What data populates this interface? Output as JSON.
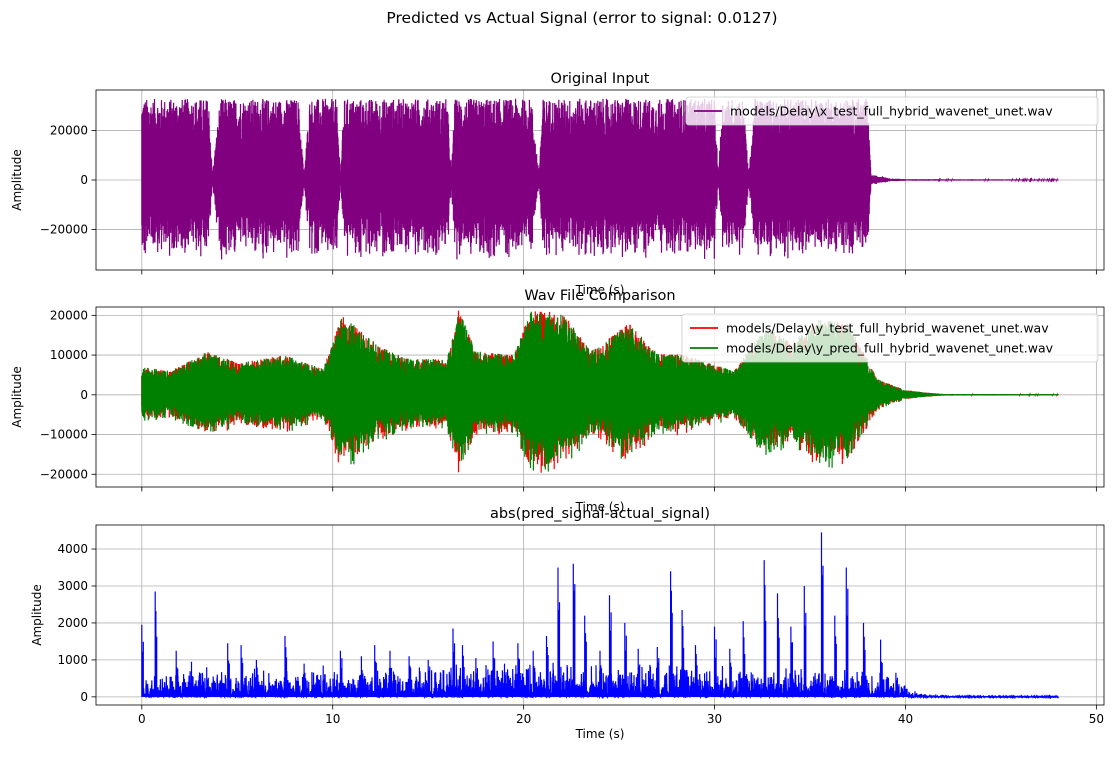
{
  "figure": {
    "suptitle": "Predicted vs Actual Signal (error to signal: 0.0127)"
  },
  "colors": {
    "x_test": "#800080",
    "y_test": "#ff0000",
    "y_pred": "#008000",
    "error": "#0000ff",
    "grid": "#b0b0b0"
  },
  "chart_data": [
    {
      "type": "line",
      "title": "Original Input",
      "xlabel": "Time (s)",
      "ylabel": "Amplitude",
      "xlim": [
        -2.4,
        50.4
      ],
      "ylim": [
        -36300,
        36300
      ],
      "xticks": [
        0,
        10,
        20,
        30,
        40,
        50
      ],
      "yticks": [
        -20000,
        0,
        20000
      ],
      "ytick_labels": [
        "−20000",
        "0",
        "20000"
      ],
      "show_xtick_labels": false,
      "grid": true,
      "legend": "upper right",
      "series": [
        {
          "name": "models/Delay\\x_test_full_hybrid_wavenet_unet.wav",
          "color": "#800080",
          "sample_rate": 5,
          "envelope": [
            [
              0,
              32767
            ],
            [
              3.5,
              32767
            ],
            [
              3.7,
              2000
            ],
            [
              4.1,
              32767
            ],
            [
              8.2,
              32767
            ],
            [
              8.5,
              2500
            ],
            [
              8.8,
              32767
            ],
            [
              10.2,
              32767
            ],
            [
              10.4,
              2500
            ],
            [
              10.6,
              32767
            ],
            [
              16.0,
              32767
            ],
            [
              16.2,
              3000
            ],
            [
              16.4,
              32767
            ],
            [
              20.4,
              32767
            ],
            [
              20.8,
              2500
            ],
            [
              21.0,
              32767
            ],
            [
              30.0,
              32767
            ],
            [
              30.2,
              1500
            ],
            [
              30.4,
              32767
            ],
            [
              31.5,
              32767
            ],
            [
              31.8,
              2000
            ],
            [
              32.1,
              32767
            ],
            [
              38.0,
              32767
            ],
            [
              38.2,
              2000
            ],
            [
              38.8,
              1500
            ],
            [
              39.2,
              600
            ],
            [
              40.2,
              300
            ],
            [
              48.0,
              200
            ]
          ]
        }
      ]
    },
    {
      "type": "line",
      "title": "Wav File Comparison",
      "xlabel": "Time (s)",
      "ylabel": "Amplitude",
      "xlim": [
        -2.4,
        50.4
      ],
      "ylim": [
        -23200,
        22100
      ],
      "xticks": [
        0,
        10,
        20,
        30,
        40,
        50
      ],
      "yticks": [
        -20000,
        -10000,
        0,
        10000,
        20000
      ],
      "ytick_labels": [
        "−20000",
        "−10000",
        "0",
        "10000",
        "20000"
      ],
      "show_xtick_labels": false,
      "grid": true,
      "legend": "upper right",
      "series": [
        {
          "name": "models/Delay\\y_test_full_hybrid_wavenet_unet.wav",
          "color": "#ff0000",
          "sample_rate": 5,
          "envelope": [
            [
              0,
              7000
            ],
            [
              1.5,
              6000
            ],
            [
              3.5,
              11000
            ],
            [
              5.0,
              8000
            ],
            [
              7.5,
              10000
            ],
            [
              9.5,
              6500
            ],
            [
              10.5,
              20000
            ],
            [
              12.5,
              12000
            ],
            [
              14.0,
              9000
            ],
            [
              16.0,
              9000
            ],
            [
              16.6,
              21500
            ],
            [
              17.5,
              11000
            ],
            [
              19.5,
              10000
            ],
            [
              20.3,
              21000
            ],
            [
              21.3,
              21000
            ],
            [
              22.2,
              20000
            ],
            [
              23.5,
              11000
            ],
            [
              25.5,
              18000
            ],
            [
              27.0,
              10500
            ],
            [
              28.5,
              10000
            ],
            [
              31.0,
              6000
            ],
            [
              32.2,
              14000
            ],
            [
              32.8,
              17000
            ],
            [
              34.0,
              13000
            ],
            [
              35.5,
              19000
            ],
            [
              37.0,
              18000
            ],
            [
              38.0,
              9000
            ],
            [
              38.5,
              4000
            ],
            [
              40.0,
              1200
            ],
            [
              41.0,
              600
            ],
            [
              42.0,
              200
            ],
            [
              48.0,
              150
            ]
          ]
        },
        {
          "name": "models/Delay\\y_pred_full_hybrid_wavenet_unet.wav",
          "color": "#008000",
          "sample_rate": 5,
          "envelope": [
            [
              0,
              7000
            ],
            [
              1.5,
              6000
            ],
            [
              3.5,
              11000
            ],
            [
              5.0,
              8000
            ],
            [
              7.5,
              10000
            ],
            [
              9.5,
              6500
            ],
            [
              10.5,
              20000
            ],
            [
              12.5,
              12000
            ],
            [
              14.0,
              9000
            ],
            [
              16.0,
              9000
            ],
            [
              16.6,
              21500
            ],
            [
              17.5,
              11000
            ],
            [
              19.5,
              10000
            ],
            [
              20.3,
              21000
            ],
            [
              21.3,
              21000
            ],
            [
              22.2,
              20000
            ],
            [
              23.5,
              11000
            ],
            [
              25.5,
              18000
            ],
            [
              27.0,
              10500
            ],
            [
              28.5,
              10000
            ],
            [
              31.0,
              6000
            ],
            [
              32.2,
              14000
            ],
            [
              32.8,
              17000
            ],
            [
              34.0,
              13000
            ],
            [
              35.5,
              19000
            ],
            [
              37.0,
              18000
            ],
            [
              38.0,
              9000
            ],
            [
              38.5,
              4000
            ],
            [
              40.0,
              1200
            ],
            [
              41.0,
              600
            ],
            [
              42.0,
              200
            ],
            [
              48.0,
              150
            ]
          ]
        }
      ]
    },
    {
      "type": "line",
      "title": "abs(pred_signal-actual_signal)",
      "xlabel": "Time (s)",
      "ylabel": "Amplitude",
      "xlim": [
        -2.4,
        50.4
      ],
      "ylim": [
        -220,
        4650
      ],
      "xticks": [
        0,
        10,
        20,
        30,
        40,
        50
      ],
      "yticks": [
        0,
        1000,
        2000,
        3000,
        4000
      ],
      "ytick_labels": [
        "0",
        "1000",
        "2000",
        "3000",
        "4000"
      ],
      "show_xtick_labels": true,
      "grid": true,
      "legend": "none",
      "series": [
        {
          "name": "",
          "color": "#0000ff",
          "baseline": [
            [
              0,
              350
            ],
            [
              10,
              350
            ],
            [
              20,
              450
            ],
            [
              30,
              400
            ],
            [
              38,
              350
            ],
            [
              39.5,
              250
            ],
            [
              40.5,
              60
            ],
            [
              42,
              25
            ],
            [
              48,
              10
            ]
          ],
          "peaks": [
            [
              0,
              1950
            ],
            [
              0.7,
              2850
            ],
            [
              1.8,
              1250
            ],
            [
              2.6,
              950
            ],
            [
              3.4,
              800
            ],
            [
              4.5,
              1450
            ],
            [
              5.2,
              1400
            ],
            [
              6.0,
              1000
            ],
            [
              7.5,
              1650
            ],
            [
              8.5,
              900
            ],
            [
              9.5,
              850
            ],
            [
              10.4,
              1250
            ],
            [
              11.5,
              1100
            ],
            [
              12.2,
              1400
            ],
            [
              13.0,
              1250
            ],
            [
              14.0,
              1100
            ],
            [
              15.0,
              1000
            ],
            [
              16.3,
              1850
            ],
            [
              16.8,
              1400
            ],
            [
              17.5,
              1050
            ],
            [
              18.4,
              1500
            ],
            [
              19.0,
              900
            ],
            [
              19.7,
              1450
            ],
            [
              20.5,
              1250
            ],
            [
              21.2,
              1650
            ],
            [
              21.8,
              3500
            ],
            [
              22.6,
              3600
            ],
            [
              23.2,
              2200
            ],
            [
              24.0,
              1250
            ],
            [
              24.5,
              2750
            ],
            [
              25.3,
              2000
            ],
            [
              26.0,
              1300
            ],
            [
              27.0,
              1350
            ],
            [
              27.7,
              3400
            ],
            [
              28.3,
              2350
            ],
            [
              29.0,
              1400
            ],
            [
              30.0,
              1900
            ],
            [
              30.8,
              1300
            ],
            [
              31.5,
              2050
            ],
            [
              32.6,
              3700
            ],
            [
              33.3,
              2800
            ],
            [
              34.0,
              1900
            ],
            [
              34.7,
              3000
            ],
            [
              35.6,
              4450
            ],
            [
              36.3,
              2200
            ],
            [
              36.9,
              3500
            ],
            [
              37.8,
              2000
            ],
            [
              38.7,
              1550
            ],
            [
              39.5,
              650
            ],
            [
              40.5,
              150
            ]
          ]
        }
      ]
    }
  ]
}
